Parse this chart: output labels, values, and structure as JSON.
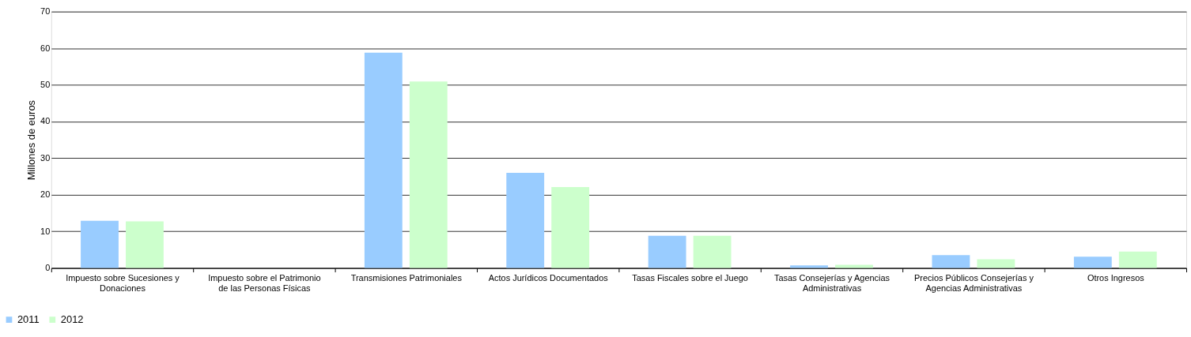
{
  "chart_data": {
    "type": "bar",
    "ylabel": "Millones de euros",
    "categories": [
      "Impuesto sobre Sucesiones y Donaciones",
      "Impuesto sobre el Patrimonio de las Personas Físicas",
      "Transmisiones Patrimoniales",
      "Actos Jurídicos Documentados",
      "Tasas Fiscales sobre el Juego",
      "Tasas Consejerías y Agencias Administrativas",
      "Precios Públicos Consejerías y Agencias Administrativas",
      "Otros Ingresos"
    ],
    "series": [
      {
        "name": "2011",
        "color": "#99ccff",
        "values": [
          12.9,
          0,
          58.8,
          26.0,
          8.8,
          0.7,
          3.5,
          3.1
        ]
      },
      {
        "name": "2012",
        "color": "#ccffcc",
        "values": [
          12.7,
          0,
          50.9,
          22.1,
          8.8,
          0.9,
          2.4,
          4.5
        ]
      }
    ],
    "ylim": [
      0,
      70
    ],
    "yticks": [
      0,
      10,
      20,
      30,
      40,
      50,
      60,
      70
    ],
    "grid": "y",
    "legend": "bottom left"
  }
}
